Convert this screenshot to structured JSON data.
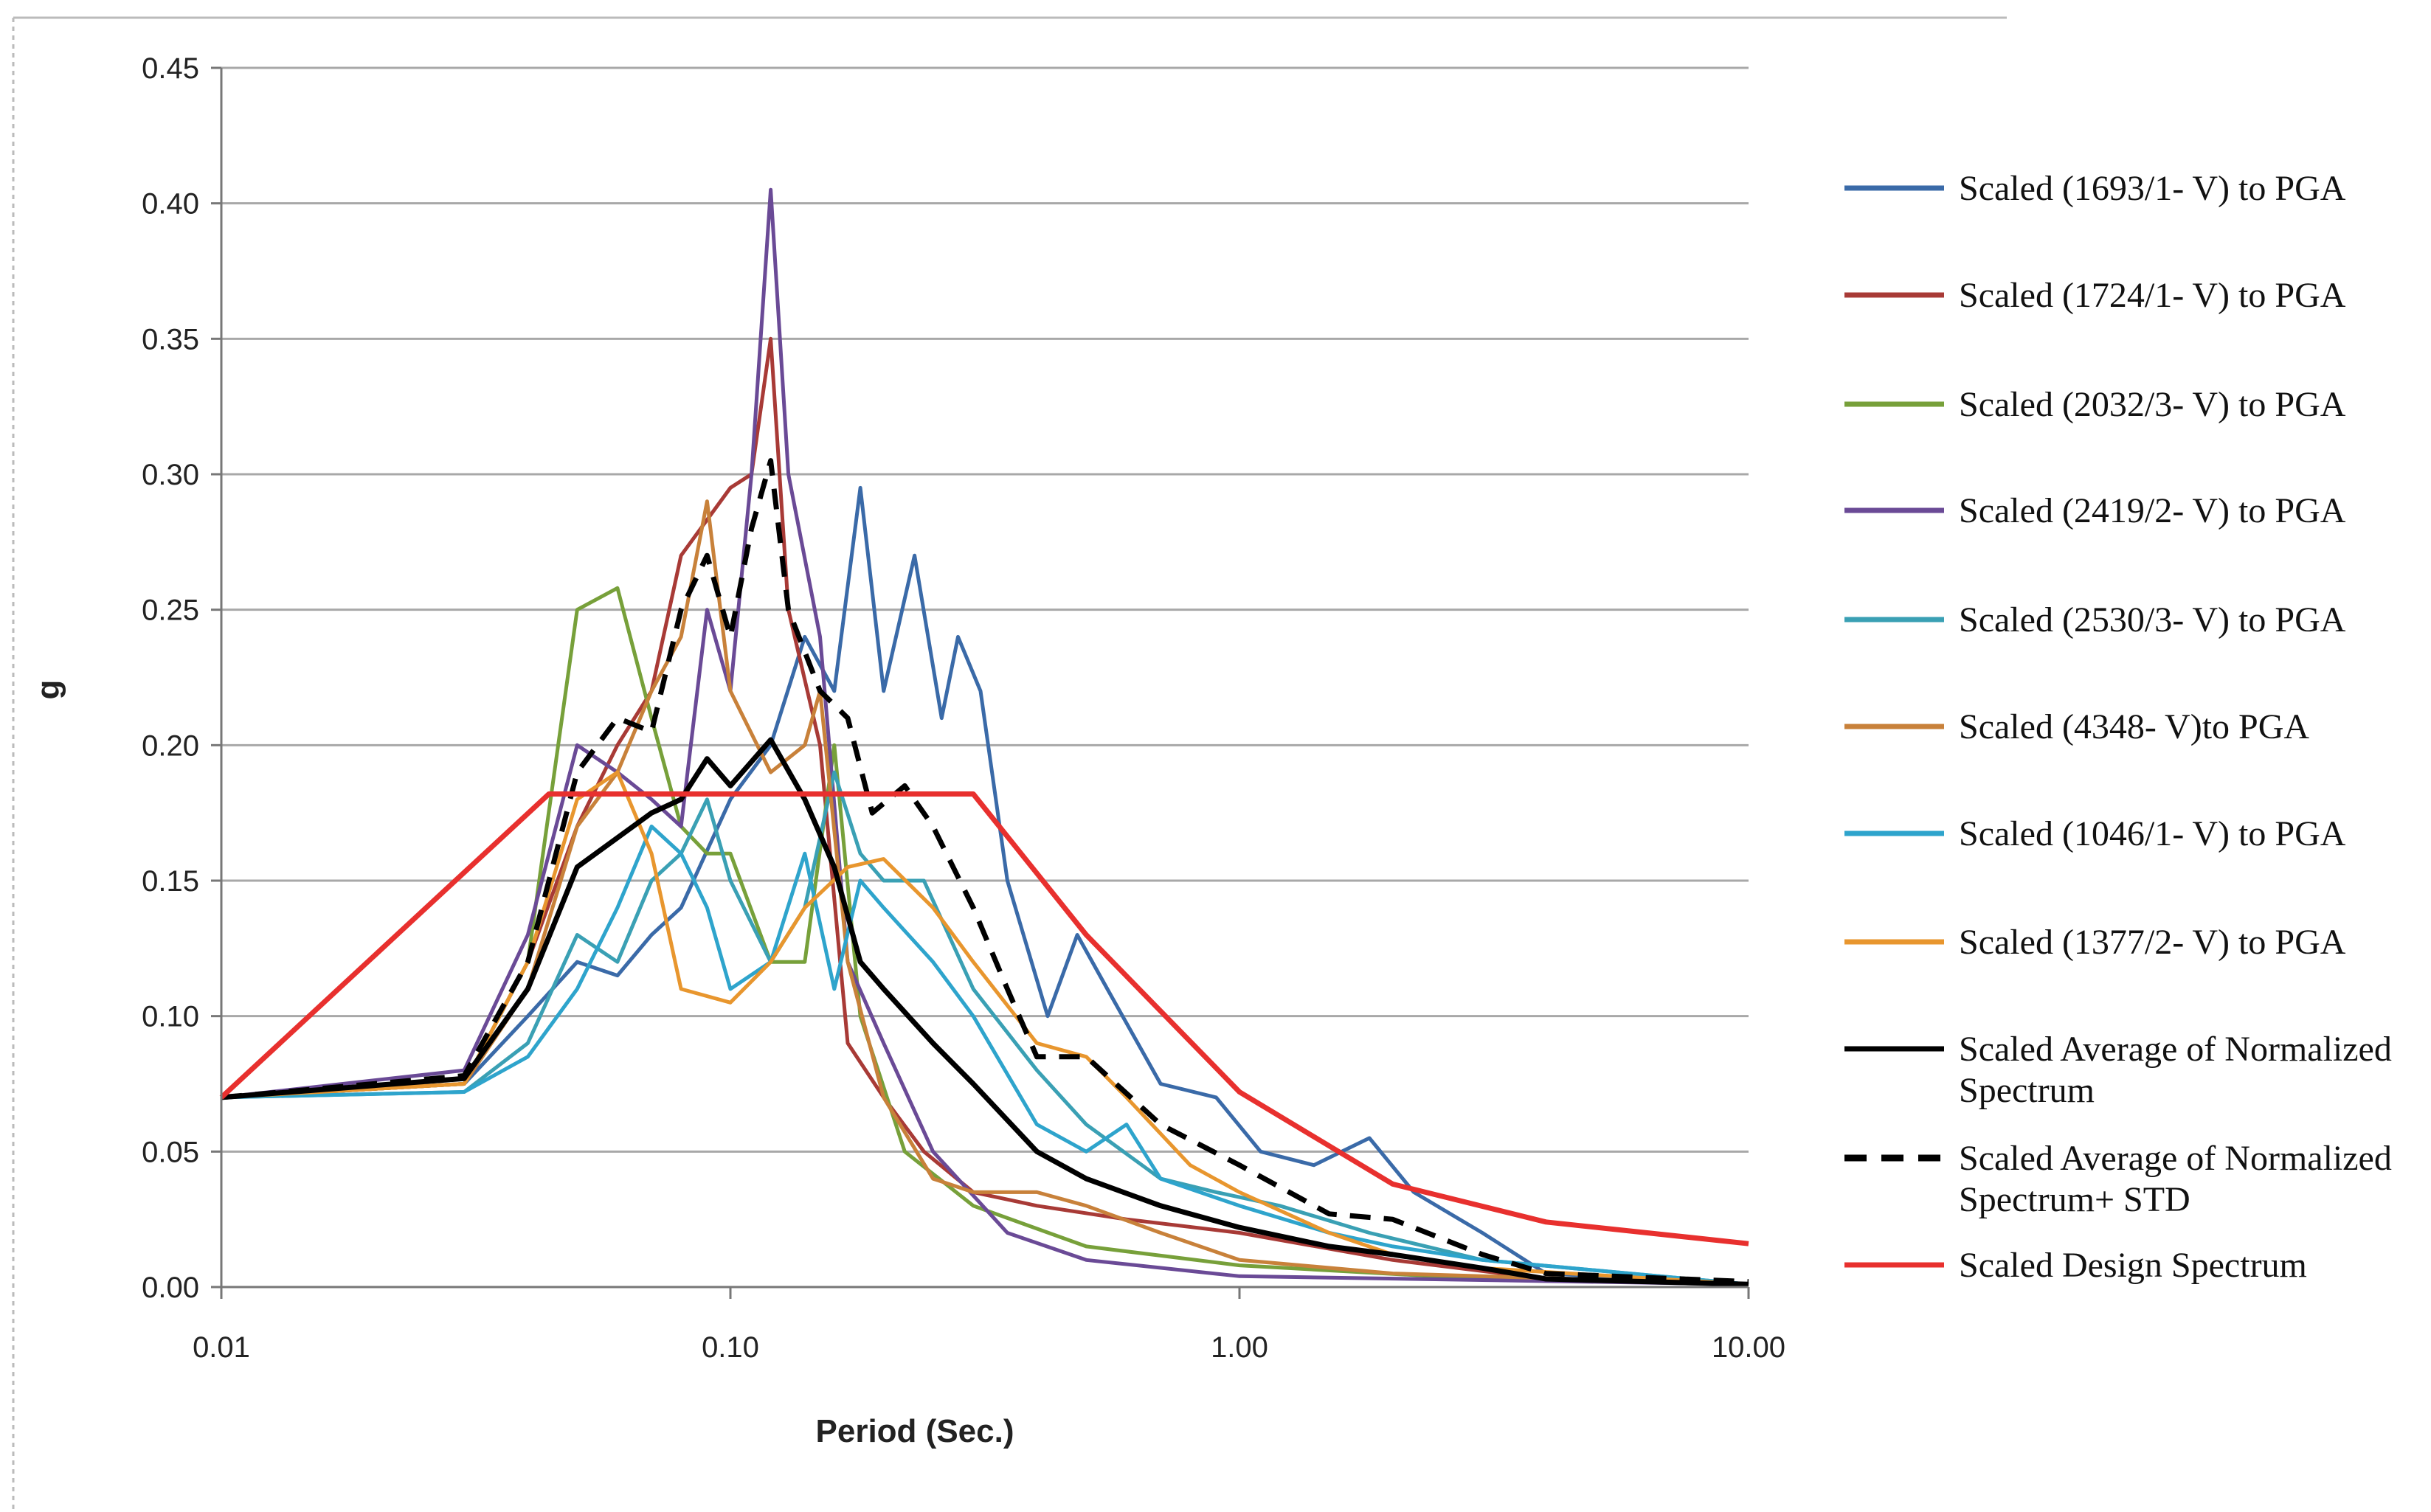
{
  "chart_data": {
    "type": "line",
    "title": "",
    "xlabel": "Period (Sec.)",
    "ylabel": "g",
    "x_scale": "log",
    "xlim": [
      0.01,
      10
    ],
    "ylim": [
      0,
      0.45
    ],
    "x_ticks": [
      "0.01",
      "0.10",
      "1.00",
      "10.00"
    ],
    "y_ticks": [
      "0.00",
      "0.05",
      "0.10",
      "0.15",
      "0.20",
      "0.25",
      "0.30",
      "0.35",
      "0.40",
      "0.45"
    ],
    "grid": "horizontal",
    "legend_position": "right",
    "series": [
      {
        "name": "Scaled (1693/1- V) to PGA",
        "color": "#3a6aa8",
        "dash": false,
        "points": [
          [
            0.01,
            0.07
          ],
          [
            0.03,
            0.075
          ],
          [
            0.04,
            0.1
          ],
          [
            0.05,
            0.12
          ],
          [
            0.06,
            0.115
          ],
          [
            0.07,
            0.13
          ],
          [
            0.08,
            0.14
          ],
          [
            0.1,
            0.18
          ],
          [
            0.12,
            0.2
          ],
          [
            0.14,
            0.24
          ],
          [
            0.16,
            0.22
          ],
          [
            0.18,
            0.295
          ],
          [
            0.2,
            0.22
          ],
          [
            0.23,
            0.27
          ],
          [
            0.26,
            0.21
          ],
          [
            0.28,
            0.24
          ],
          [
            0.31,
            0.22
          ],
          [
            0.35,
            0.15
          ],
          [
            0.42,
            0.1
          ],
          [
            0.48,
            0.13
          ],
          [
            0.55,
            0.11
          ],
          [
            0.7,
            0.075
          ],
          [
            0.9,
            0.07
          ],
          [
            1.1,
            0.05
          ],
          [
            1.4,
            0.045
          ],
          [
            1.8,
            0.055
          ],
          [
            2.2,
            0.035
          ],
          [
            3.0,
            0.02
          ],
          [
            4.0,
            0.005
          ],
          [
            10.0,
            0.001
          ]
        ]
      },
      {
        "name": "Scaled (1724/1- V) to PGA",
        "color": "#a83a36",
        "dash": false,
        "points": [
          [
            0.01,
            0.07
          ],
          [
            0.03,
            0.075
          ],
          [
            0.04,
            0.12
          ],
          [
            0.05,
            0.17
          ],
          [
            0.06,
            0.2
          ],
          [
            0.07,
            0.22
          ],
          [
            0.08,
            0.27
          ],
          [
            0.1,
            0.295
          ],
          [
            0.11,
            0.3
          ],
          [
            0.12,
            0.35
          ],
          [
            0.13,
            0.25
          ],
          [
            0.15,
            0.2
          ],
          [
            0.17,
            0.09
          ],
          [
            0.2,
            0.07
          ],
          [
            0.24,
            0.05
          ],
          [
            0.3,
            0.035
          ],
          [
            0.4,
            0.03
          ],
          [
            0.6,
            0.025
          ],
          [
            1.0,
            0.02
          ],
          [
            2.0,
            0.01
          ],
          [
            4.0,
            0.003
          ],
          [
            10.0,
            0.001
          ]
        ]
      },
      {
        "name": "Scaled (2032/3- V) to PGA",
        "color": "#77a03a",
        "dash": false,
        "points": [
          [
            0.01,
            0.07
          ],
          [
            0.03,
            0.075
          ],
          [
            0.04,
            0.12
          ],
          [
            0.05,
            0.25
          ],
          [
            0.06,
            0.258
          ],
          [
            0.07,
            0.21
          ],
          [
            0.08,
            0.17
          ],
          [
            0.09,
            0.16
          ],
          [
            0.1,
            0.16
          ],
          [
            0.12,
            0.12
          ],
          [
            0.14,
            0.12
          ],
          [
            0.16,
            0.2
          ],
          [
            0.18,
            0.1
          ],
          [
            0.22,
            0.05
          ],
          [
            0.3,
            0.03
          ],
          [
            0.5,
            0.015
          ],
          [
            1.0,
            0.008
          ],
          [
            3.0,
            0.003
          ],
          [
            10.0,
            0.001
          ]
        ]
      },
      {
        "name": "Scaled (2419/2- V) to PGA",
        "color": "#6a4a96",
        "dash": false,
        "points": [
          [
            0.01,
            0.07
          ],
          [
            0.03,
            0.08
          ],
          [
            0.04,
            0.13
          ],
          [
            0.05,
            0.2
          ],
          [
            0.06,
            0.19
          ],
          [
            0.07,
            0.18
          ],
          [
            0.08,
            0.17
          ],
          [
            0.09,
            0.25
          ],
          [
            0.1,
            0.22
          ],
          [
            0.11,
            0.3
          ],
          [
            0.12,
            0.405
          ],
          [
            0.13,
            0.3
          ],
          [
            0.15,
            0.24
          ],
          [
            0.17,
            0.12
          ],
          [
            0.2,
            0.09
          ],
          [
            0.25,
            0.05
          ],
          [
            0.35,
            0.02
          ],
          [
            0.5,
            0.01
          ],
          [
            1.0,
            0.004
          ],
          [
            10.0,
            0.001
          ]
        ]
      },
      {
        "name": "Scaled (2530/3- V) to PGA",
        "color": "#3aa0b4",
        "dash": false,
        "points": [
          [
            0.01,
            0.07
          ],
          [
            0.03,
            0.072
          ],
          [
            0.04,
            0.09
          ],
          [
            0.05,
            0.13
          ],
          [
            0.06,
            0.12
          ],
          [
            0.07,
            0.15
          ],
          [
            0.08,
            0.16
          ],
          [
            0.09,
            0.18
          ],
          [
            0.1,
            0.15
          ],
          [
            0.12,
            0.12
          ],
          [
            0.14,
            0.14
          ],
          [
            0.16,
            0.19
          ],
          [
            0.18,
            0.16
          ],
          [
            0.2,
            0.15
          ],
          [
            0.24,
            0.15
          ],
          [
            0.3,
            0.11
          ],
          [
            0.4,
            0.08
          ],
          [
            0.5,
            0.06
          ],
          [
            0.7,
            0.04
          ],
          [
            0.9,
            0.035
          ],
          [
            1.2,
            0.03
          ],
          [
            1.8,
            0.02
          ],
          [
            3.0,
            0.01
          ],
          [
            10.0,
            0.001
          ]
        ]
      },
      {
        "name": "Scaled (4348- V)to PGA",
        "color": "#c8813a",
        "dash": false,
        "points": [
          [
            0.01,
            0.07
          ],
          [
            0.03,
            0.075
          ],
          [
            0.04,
            0.11
          ],
          [
            0.05,
            0.17
          ],
          [
            0.06,
            0.19
          ],
          [
            0.07,
            0.22
          ],
          [
            0.08,
            0.24
          ],
          [
            0.09,
            0.29
          ],
          [
            0.1,
            0.22
          ],
          [
            0.12,
            0.19
          ],
          [
            0.14,
            0.2
          ],
          [
            0.15,
            0.22
          ],
          [
            0.17,
            0.12
          ],
          [
            0.2,
            0.07
          ],
          [
            0.25,
            0.04
          ],
          [
            0.3,
            0.035
          ],
          [
            0.4,
            0.035
          ],
          [
            0.5,
            0.03
          ],
          [
            0.7,
            0.02
          ],
          [
            1.0,
            0.01
          ],
          [
            2.0,
            0.005
          ],
          [
            10.0,
            0.001
          ]
        ]
      },
      {
        "name": "Scaled (1046/1- V) to PGA",
        "color": "#2ea4cc",
        "dash": false,
        "points": [
          [
            0.01,
            0.07
          ],
          [
            0.03,
            0.072
          ],
          [
            0.04,
            0.085
          ],
          [
            0.05,
            0.11
          ],
          [
            0.06,
            0.14
          ],
          [
            0.07,
            0.17
          ],
          [
            0.08,
            0.16
          ],
          [
            0.09,
            0.14
          ],
          [
            0.1,
            0.11
          ],
          [
            0.12,
            0.12
          ],
          [
            0.14,
            0.16
          ],
          [
            0.16,
            0.11
          ],
          [
            0.18,
            0.15
          ],
          [
            0.2,
            0.14
          ],
          [
            0.25,
            0.12
          ],
          [
            0.3,
            0.1
          ],
          [
            0.4,
            0.06
          ],
          [
            0.5,
            0.05
          ],
          [
            0.6,
            0.06
          ],
          [
            0.7,
            0.04
          ],
          [
            1.0,
            0.03
          ],
          [
            1.5,
            0.02
          ],
          [
            2.0,
            0.015
          ],
          [
            3.0,
            0.01
          ],
          [
            10.0,
            0.001
          ]
        ]
      },
      {
        "name": "Scaled (1377/2- V) to PGA",
        "color": "#e8962e",
        "dash": false,
        "points": [
          [
            0.01,
            0.07
          ],
          [
            0.03,
            0.075
          ],
          [
            0.04,
            0.12
          ],
          [
            0.05,
            0.18
          ],
          [
            0.06,
            0.19
          ],
          [
            0.07,
            0.16
          ],
          [
            0.08,
            0.11
          ],
          [
            0.1,
            0.105
          ],
          [
            0.12,
            0.12
          ],
          [
            0.14,
            0.14
          ],
          [
            0.17,
            0.155
          ],
          [
            0.2,
            0.158
          ],
          [
            0.25,
            0.14
          ],
          [
            0.3,
            0.12
          ],
          [
            0.4,
            0.09
          ],
          [
            0.5,
            0.085
          ],
          [
            0.6,
            0.07
          ],
          [
            0.8,
            0.045
          ],
          [
            1.0,
            0.035
          ],
          [
            1.5,
            0.02
          ],
          [
            2.0,
            0.012
          ],
          [
            3.0,
            0.007
          ],
          [
            10.0,
            0.001
          ]
        ]
      },
      {
        "name": "Scaled Average of Normalized Spectrum",
        "color": "#000000",
        "dash": false,
        "points": [
          [
            0.01,
            0.07
          ],
          [
            0.03,
            0.077
          ],
          [
            0.04,
            0.11
          ],
          [
            0.05,
            0.155
          ],
          [
            0.07,
            0.175
          ],
          [
            0.08,
            0.18
          ],
          [
            0.09,
            0.195
          ],
          [
            0.1,
            0.185
          ],
          [
            0.12,
            0.202
          ],
          [
            0.14,
            0.18
          ],
          [
            0.16,
            0.155
          ],
          [
            0.18,
            0.12
          ],
          [
            0.2,
            0.11
          ],
          [
            0.25,
            0.09
          ],
          [
            0.3,
            0.075
          ],
          [
            0.4,
            0.05
          ],
          [
            0.5,
            0.04
          ],
          [
            0.7,
            0.03
          ],
          [
            1.0,
            0.022
          ],
          [
            1.5,
            0.015
          ],
          [
            2.0,
            0.012
          ],
          [
            3.0,
            0.007
          ],
          [
            4.0,
            0.003
          ],
          [
            10.0,
            0.001
          ]
        ]
      },
      {
        "name": "Scaled Average of Normalized Spectrum+ STD",
        "color": "#000000",
        "dash": true,
        "points": [
          [
            0.01,
            0.07
          ],
          [
            0.03,
            0.078
          ],
          [
            0.04,
            0.12
          ],
          [
            0.05,
            0.19
          ],
          [
            0.06,
            0.21
          ],
          [
            0.07,
            0.205
          ],
          [
            0.08,
            0.25
          ],
          [
            0.09,
            0.27
          ],
          [
            0.1,
            0.24
          ],
          [
            0.11,
            0.28
          ],
          [
            0.12,
            0.305
          ],
          [
            0.13,
            0.25
          ],
          [
            0.15,
            0.22
          ],
          [
            0.17,
            0.21
          ],
          [
            0.19,
            0.175
          ],
          [
            0.22,
            0.185
          ],
          [
            0.25,
            0.17
          ],
          [
            0.3,
            0.14
          ],
          [
            0.35,
            0.11
          ],
          [
            0.4,
            0.085
          ],
          [
            0.5,
            0.085
          ],
          [
            0.7,
            0.06
          ],
          [
            1.0,
            0.045
          ],
          [
            1.5,
            0.027
          ],
          [
            2.0,
            0.025
          ],
          [
            3.0,
            0.012
          ],
          [
            4.0,
            0.005
          ],
          [
            10.0,
            0.002
          ]
        ]
      },
      {
        "name": "Scaled Design Spectrum",
        "color": "#e8302e",
        "dash": false,
        "points": [
          [
            0.01,
            0.07
          ],
          [
            0.044,
            0.182
          ],
          [
            0.3,
            0.182
          ],
          [
            0.5,
            0.13
          ],
          [
            1.0,
            0.072
          ],
          [
            2.0,
            0.038
          ],
          [
            4.0,
            0.024
          ],
          [
            10.0,
            0.016
          ]
        ]
      }
    ]
  }
}
